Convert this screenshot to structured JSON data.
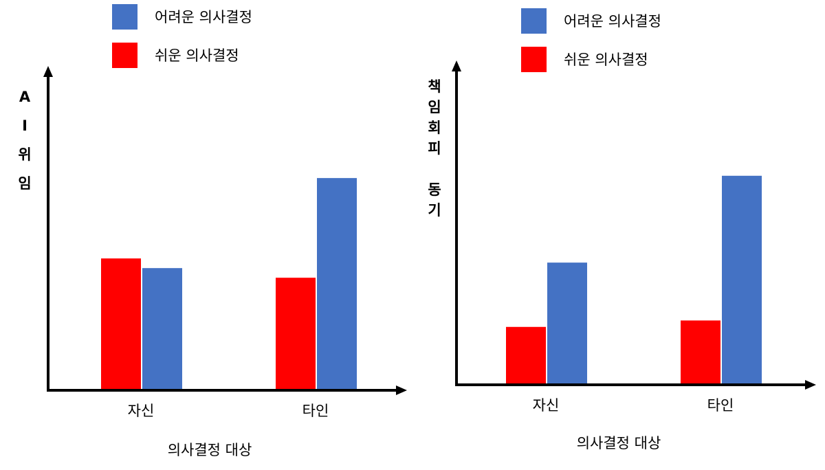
{
  "colors": {
    "hard": "#4472C4",
    "easy": "#FF0000",
    "axis": "#000000"
  },
  "chart_data": [
    {
      "type": "bar",
      "categories": [
        "자신",
        "타인"
      ],
      "xlabel": "의사결정 대상",
      "ylabel": "A I 위 임",
      "ylabel_chars": [
        "A",
        "I",
        "위",
        "임"
      ],
      "ylim": [
        0,
        100
      ],
      "legend_position": "top",
      "grid": false,
      "series": [
        {
          "name": "쉬운 의사결정",
          "color_key": "easy",
          "values": [
            41,
            35
          ]
        },
        {
          "name": "어려운 의사결정",
          "color_key": "hard",
          "values": [
            38,
            66
          ]
        }
      ]
    },
    {
      "type": "bar",
      "categories": [
        "자신",
        "타인"
      ],
      "xlabel": "의사결정 대상",
      "ylabel": "책임회피 동기",
      "ylabel_chars": [
        "책",
        "임",
        "회",
        "피",
        "",
        "동",
        "기"
      ],
      "ylim": [
        0,
        100
      ],
      "legend_position": "top",
      "grid": false,
      "series": [
        {
          "name": "쉬운 의사결정",
          "color_key": "easy",
          "values": [
            18,
            20
          ]
        },
        {
          "name": "어려운 의사결정",
          "color_key": "hard",
          "values": [
            38,
            65
          ]
        }
      ]
    }
  ]
}
